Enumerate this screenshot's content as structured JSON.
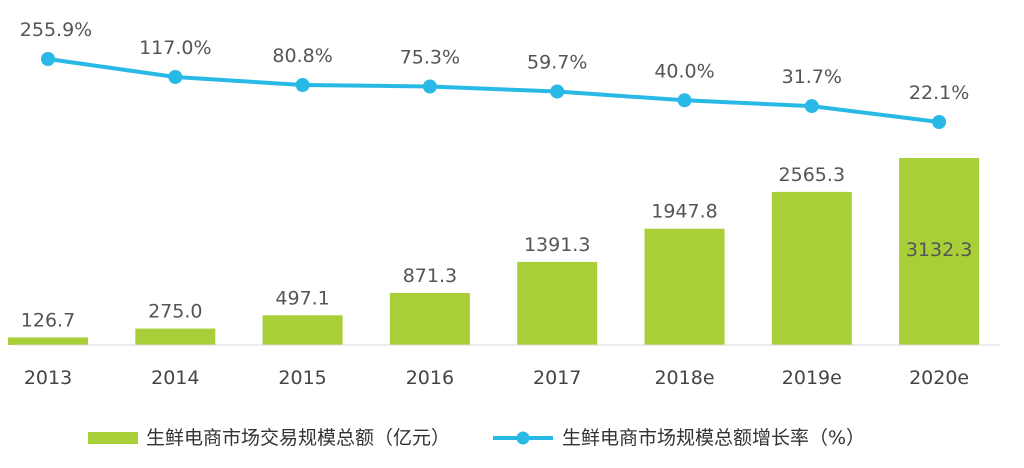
{
  "chart_data": {
    "type": "bar",
    "categories": [
      "2013",
      "2014",
      "2015",
      "2016",
      "2017",
      "2018e",
      "2019e",
      "2020e"
    ],
    "series": [
      {
        "name": "生鲜电商市场交易规模总额（亿元）",
        "type": "bar",
        "values": [
          126.7,
          275.0,
          497.1,
          871.3,
          1391.3,
          1947.8,
          2565.3,
          3132.3
        ],
        "labels": [
          "126.7",
          "275.0",
          "497.1",
          "871.3",
          "1391.3",
          "1947.8",
          "2565.3",
          "3132.3"
        ],
        "color": "#a8cf38"
      },
      {
        "name": "生鲜电商市场规模总额增长率（%）",
        "type": "line",
        "values": [
          255.9,
          117.0,
          80.8,
          75.3,
          59.7,
          40.0,
          31.7,
          22.1
        ],
        "labels": [
          "255.9%",
          "117.0%",
          "80.8%",
          "75.3%",
          "59.7%",
          "40.0%",
          "31.7%",
          "22.1%"
        ],
        "color": "#29b9e6"
      }
    ],
    "title": "",
    "xlabel": "",
    "ylabel": "",
    "grid": false,
    "legend_position": "bottom-center"
  }
}
